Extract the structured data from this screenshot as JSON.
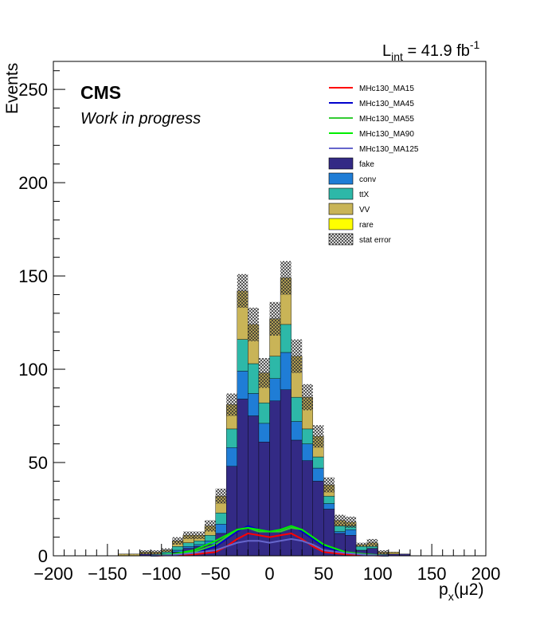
{
  "header": {
    "experiment": "CMS",
    "status": "Work in progress",
    "lumi_text": "L",
    "lumi_sub": "int",
    "lumi_value": " = 41.9 fb",
    "lumi_sup": "-1"
  },
  "legend": [
    {
      "label": "MHc130_MA15",
      "kind": "line",
      "color": "#ff0000"
    },
    {
      "label": "MHc130_MA45",
      "kind": "line",
      "color": "#0000cc"
    },
    {
      "label": "MHc130_MA55",
      "kind": "line",
      "color": "#33cc33"
    },
    {
      "label": "MHc130_MA90",
      "kind": "line",
      "color": "#00ee00"
    },
    {
      "label": "MHc130_MA125",
      "kind": "line",
      "color": "#6666cc"
    },
    {
      "label": "fake",
      "kind": "fill",
      "color": "#332a85"
    },
    {
      "label": "conv",
      "kind": "fill",
      "color": "#1f7dd6"
    },
    {
      "label": "ttX",
      "kind": "fill",
      "color": "#2db8a8"
    },
    {
      "label": "VV",
      "kind": "fill",
      "color": "#c9b457"
    },
    {
      "label": "rare",
      "kind": "fill",
      "color": "#ffff00"
    },
    {
      "label": "stat error",
      "kind": "hatch",
      "color": "#555555"
    }
  ],
  "chart_data": {
    "type": "bar",
    "stacked": true,
    "xlabel_main": "p",
    "xlabel_sub": "x",
    "xlabel_rest": "(μ2)",
    "ylabel": "Events",
    "xlim": [
      -200,
      200
    ],
    "ylim": [
      0,
      265
    ],
    "x_ticks": [
      -200,
      -150,
      -100,
      -50,
      0,
      50,
      100,
      150,
      200
    ],
    "y_ticks": [
      0,
      50,
      100,
      150,
      200,
      250
    ],
    "bin_edges": [
      -200,
      -190,
      -180,
      -170,
      -160,
      -150,
      -140,
      -130,
      -120,
      -110,
      -100,
      -90,
      -80,
      -70,
      -60,
      -50,
      -40,
      -30,
      -20,
      -10,
      0,
      10,
      20,
      30,
      40,
      50,
      60,
      70,
      80,
      90,
      100,
      110,
      120,
      130,
      140,
      150,
      160,
      170,
      180,
      190,
      200
    ],
    "stack": [
      {
        "name": "fake",
        "color": "#332a85",
        "values": [
          0,
          0,
          0,
          0,
          0,
          0,
          0,
          0,
          1,
          1,
          1,
          2,
          4,
          5,
          6,
          12,
          48,
          84,
          75,
          61,
          83,
          89,
          62,
          51,
          40,
          25,
          12,
          11,
          3,
          4,
          1,
          1,
          1,
          0,
          0,
          0,
          0,
          0,
          0,
          0
        ]
      },
      {
        "name": "conv",
        "color": "#1f7dd6",
        "values": [
          0,
          0,
          0,
          0,
          0,
          0,
          0,
          0,
          0,
          0,
          0,
          1,
          1,
          1,
          2,
          5,
          10,
          15,
          12,
          10,
          12,
          20,
          10,
          9,
          7,
          3,
          1,
          3,
          0,
          0,
          0,
          0,
          0,
          0,
          0,
          0,
          0,
          0,
          0,
          0
        ]
      },
      {
        "name": "ttX",
        "color": "#2db8a8",
        "values": [
          0,
          0,
          0,
          0,
          0,
          0,
          0,
          0,
          0,
          0,
          1,
          2,
          2,
          2,
          3,
          6,
          10,
          17,
          16,
          11,
          12,
          15,
          13,
          8,
          6,
          4,
          3,
          2,
          2,
          1,
          0,
          0,
          0,
          0,
          0,
          0,
          0,
          0,
          0,
          0
        ]
      },
      {
        "name": "VV",
        "color": "#c9b457",
        "values": [
          0,
          0,
          0,
          0,
          0,
          0,
          1,
          1,
          1,
          1,
          1,
          3,
          4,
          3,
          5,
          9,
          13,
          26,
          21,
          16,
          20,
          25,
          22,
          17,
          11,
          6,
          3,
          2,
          1,
          2,
          1,
          1,
          0,
          0,
          0,
          0,
          0,
          0,
          0,
          0
        ]
      },
      {
        "name": "rare",
        "color": "#ffff00",
        "values": [
          0,
          0,
          0,
          0,
          0,
          0,
          0,
          0,
          0,
          0,
          0,
          0,
          0,
          0,
          0,
          0,
          0,
          0,
          0,
          0,
          0,
          0,
          0,
          0,
          0,
          0,
          0,
          0,
          0,
          0,
          0,
          0,
          0,
          0,
          0,
          0,
          0,
          0,
          0,
          0
        ]
      }
    ],
    "stat_error": [
      0,
      0,
      0,
      0,
      0,
      0,
      0,
      0,
      1,
      1,
      1,
      2,
      2,
      2,
      3,
      4,
      6,
      9,
      9,
      8,
      9,
      9,
      9,
      7,
      6,
      4,
      3,
      3,
      1,
      2,
      1,
      0,
      0,
      0,
      0,
      0,
      0,
      0,
      0,
      0
    ],
    "signals": [
      {
        "name": "MHc130_MA15",
        "color": "#ff0000",
        "x": [
          -110,
          -90,
          -70,
          -50,
          -40,
          -30,
          -20,
          -10,
          0,
          10,
          20,
          30,
          40,
          50,
          70,
          90,
          110
        ],
        "y": [
          0,
          0.3,
          0.8,
          2,
          5,
          9,
          12,
          11,
          10,
          11,
          12,
          9,
          5,
          2,
          0.8,
          0.3,
          0
        ]
      },
      {
        "name": "MHc130_MA45",
        "color": "#0000cc",
        "x": [
          -110,
          -90,
          -70,
          -50,
          -40,
          -30,
          -20,
          -10,
          0,
          10,
          20,
          30,
          40,
          50,
          70,
          90,
          110
        ],
        "y": [
          0,
          0.5,
          1.5,
          5,
          9,
          13,
          16,
          14,
          13,
          14,
          16,
          13,
          9,
          5,
          1.5,
          0.5,
          0
        ]
      },
      {
        "name": "MHc130_MA55",
        "color": "#33cc33",
        "x": [
          -110,
          -90,
          -70,
          -50,
          -40,
          -30,
          -20,
          -10,
          0,
          10,
          20,
          30,
          40,
          50,
          70,
          90,
          110
        ],
        "y": [
          0,
          0.6,
          2,
          6,
          10,
          14,
          15,
          13,
          13,
          13,
          15,
          14,
          10,
          6,
          2,
          0.6,
          0
        ]
      },
      {
        "name": "MHc130_MA90",
        "color": "#00ee00",
        "x": [
          -110,
          -90,
          -70,
          -50,
          -40,
          -30,
          -20,
          -10,
          0,
          10,
          20,
          30,
          40,
          50,
          70,
          90,
          110
        ],
        "y": [
          0,
          0.8,
          3,
          8,
          11,
          14,
          15,
          14,
          13,
          14,
          16,
          14,
          10,
          6,
          2,
          0.8,
          0
        ]
      },
      {
        "name": "MHc130_MA125",
        "color": "#6666cc",
        "x": [
          -110,
          -90,
          -70,
          -50,
          -40,
          -30,
          -20,
          -10,
          0,
          10,
          20,
          30,
          40,
          50,
          70,
          90,
          110
        ],
        "y": [
          0,
          0.5,
          1.5,
          3,
          5,
          7,
          8,
          8,
          7,
          8,
          9,
          8,
          6,
          3,
          1.5,
          0.5,
          0
        ]
      }
    ]
  }
}
